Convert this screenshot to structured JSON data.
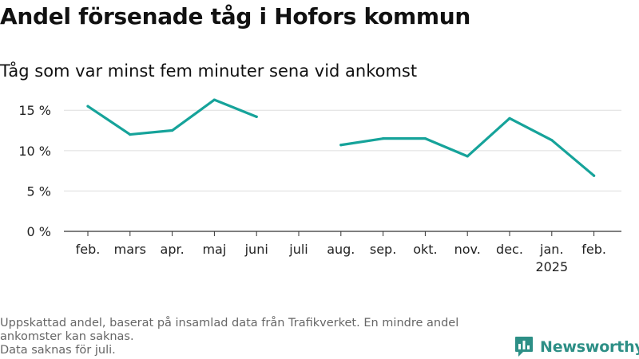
{
  "title": "Andel försenade tåg i Hofors kommun",
  "subtitle": "Tåg som var minst fem minuter sena vid ankomst",
  "footnote": {
    "line1": "Uppskattad andel, baserat på insamlad data från Trafikverket. En mindre andel",
    "line2": "ankomster kan saknas.",
    "line3": "Data saknas för juli."
  },
  "logo": {
    "text": "Newsworthy",
    "icon": "newsworthy-logo-icon"
  },
  "colors": {
    "line": "#16a39a",
    "grid": "#dddddd",
    "axis": "#333333",
    "logo": "#2d8f86"
  },
  "chart_data": {
    "type": "line",
    "categories": [
      "feb.",
      "mars",
      "apr.",
      "maj",
      "juni",
      "juli",
      "aug.",
      "sep.",
      "okt.",
      "nov.",
      "dec.",
      "jan.",
      "feb."
    ],
    "category_sublabels": [
      "",
      "",
      "",
      "",
      "",
      "",
      "",
      "",
      "",
      "",
      "",
      "2025",
      ""
    ],
    "series": [
      {
        "values": [
          15.5,
          12.0,
          12.5,
          16.3,
          14.2,
          null,
          10.7,
          11.5,
          11.5,
          9.3,
          14.0,
          11.3,
          6.9
        ]
      }
    ],
    "yticks": [
      0,
      5,
      10,
      15
    ],
    "ytick_labels": [
      "0 %",
      "5 %",
      "10 %",
      "15 %"
    ],
    "ylim": [
      0,
      17
    ],
    "xlabel": "",
    "ylabel": "",
    "grid": true,
    "legend": "none"
  }
}
